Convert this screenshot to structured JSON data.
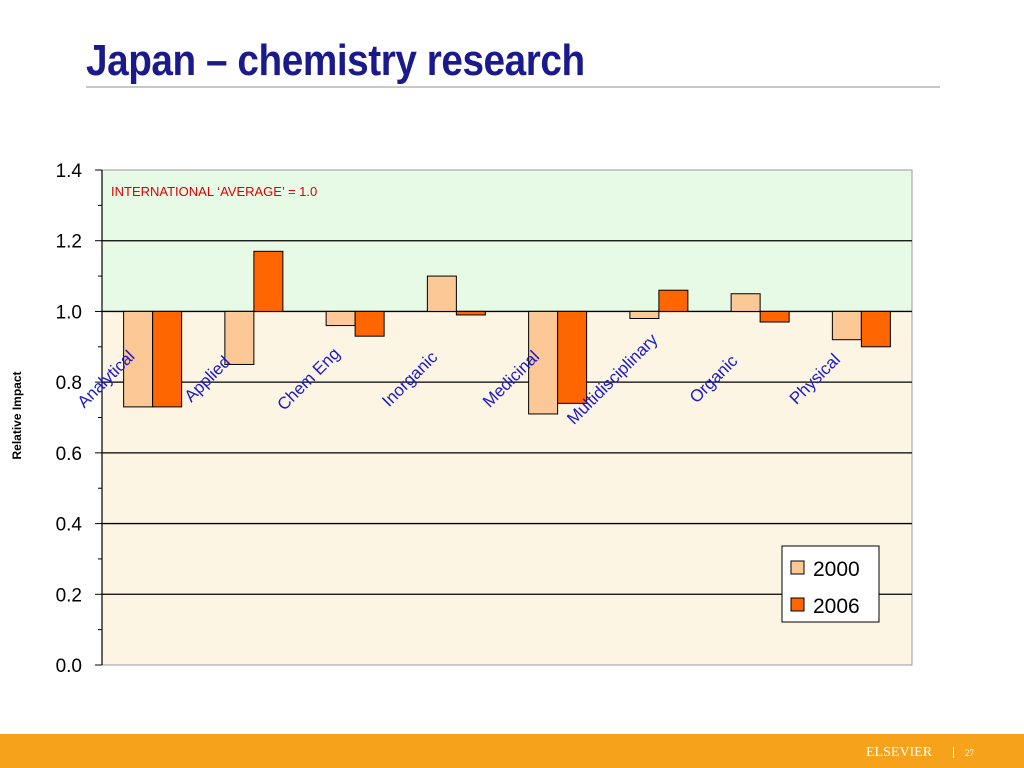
{
  "slide": {
    "title": "Japan – chemistry research",
    "footer_brand": "ELSEVIER",
    "page_number": "27"
  },
  "colors": {
    "title": "#1a1a8c",
    "footer": "#f7a21b",
    "band_above": "#e6fae6",
    "band_below": "#fdf5e4",
    "series_2000": "#fbc896",
    "series_2006": "#ff6600",
    "annotation": "#e00000",
    "category_label": "#1a1acc"
  },
  "chart_data": {
    "type": "bar",
    "ylabel": "Relative Impact",
    "xlabel": "",
    "ylim": [
      0,
      1.4
    ],
    "yticks": [
      "0.0",
      "0.2",
      "0.4",
      "0.6",
      "0.8",
      "1.0",
      "1.2",
      "1.4"
    ],
    "baseline": 1.0,
    "grid": true,
    "legend_position": "bottom-right",
    "annotation": "INTERNATIONAL ‘AVERAGE’ = 1.0",
    "categories": [
      "Analytical",
      "Applied",
      "Chem Eng",
      "Inorganic",
      "Medicinal",
      "Multidisciplinary",
      "Organic",
      "Physical"
    ],
    "series": [
      {
        "name": "2000",
        "values": [
          0.73,
          0.85,
          0.96,
          1.1,
          0.71,
          0.98,
          1.05,
          0.92
        ]
      },
      {
        "name": "2006",
        "values": [
          0.73,
          1.17,
          0.93,
          0.99,
          0.74,
          1.06,
          0.97,
          0.9
        ]
      }
    ]
  }
}
